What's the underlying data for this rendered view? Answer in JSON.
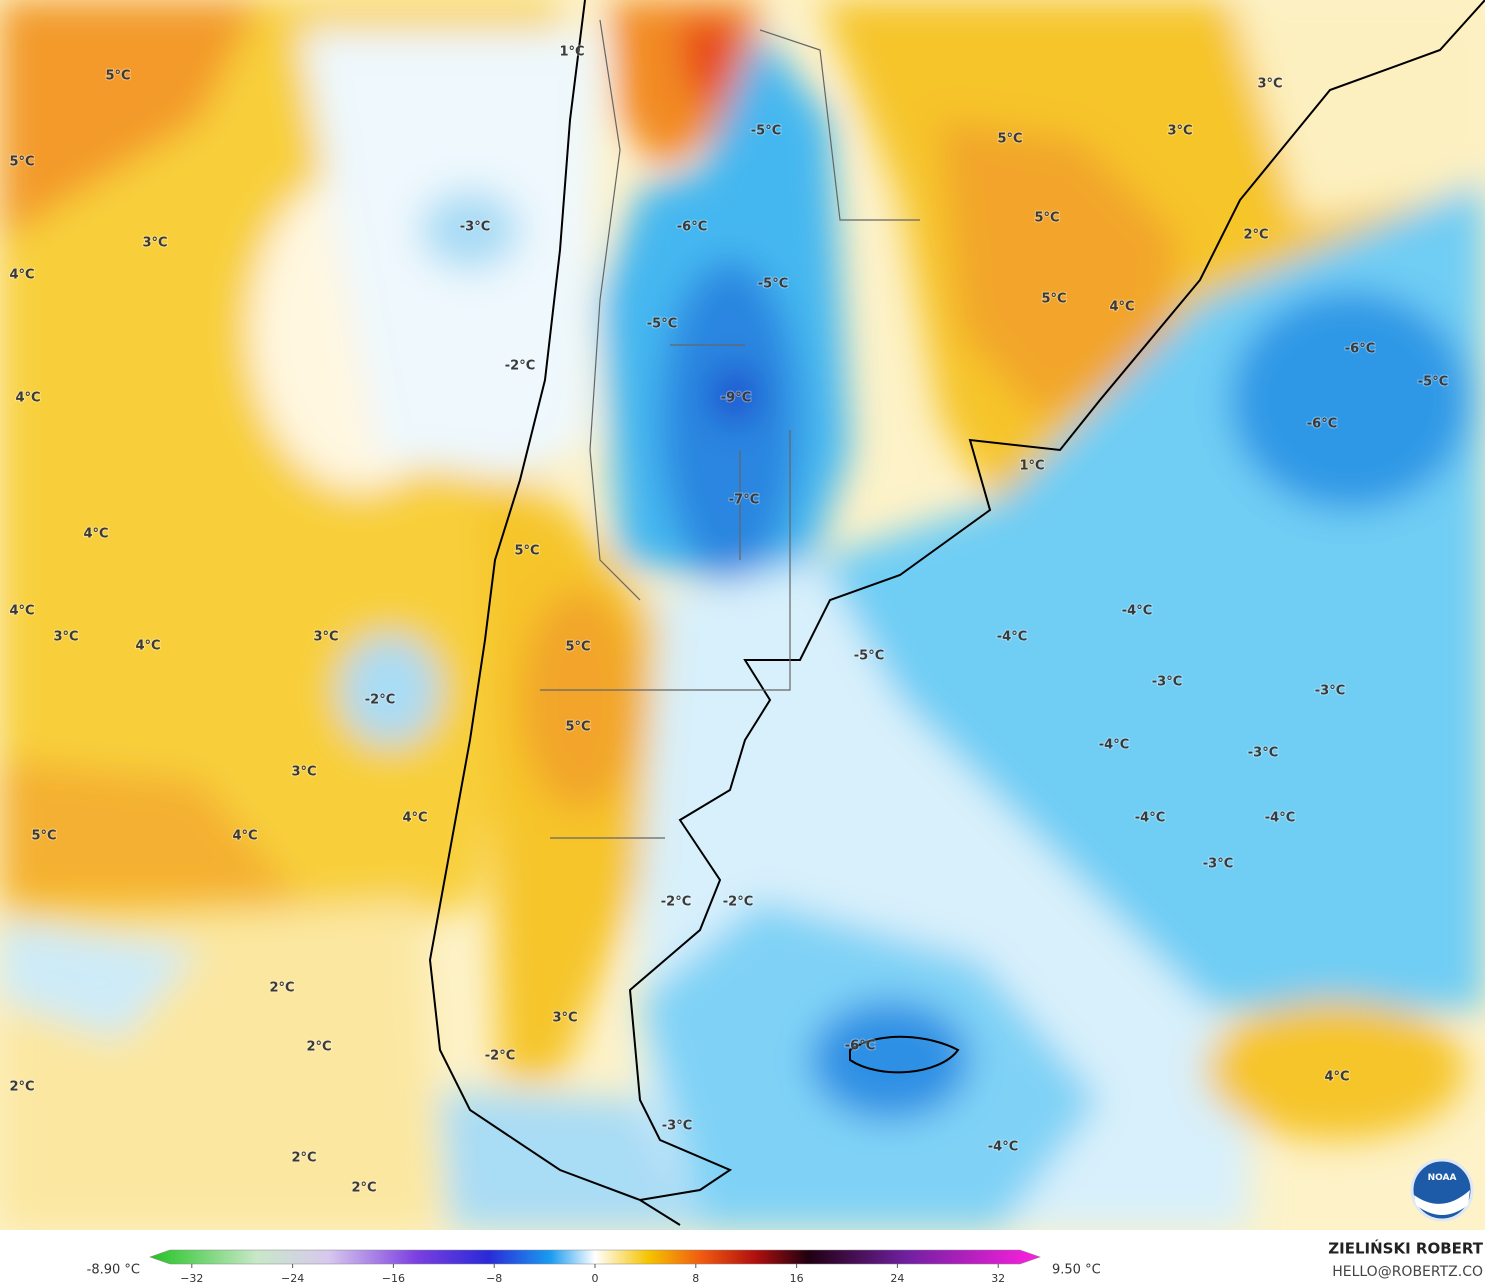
{
  "map": {
    "labels": [
      "1°C",
      "5°C",
      "5°C",
      "3°C",
      "4°C",
      "4°C",
      "4°C",
      "4°C",
      "3°C",
      "4°C",
      "3°C",
      "-2°C",
      "3°C",
      "4°C",
      "5°C",
      "4°C",
      "2°C",
      "2°C",
      "2°C",
      "2°C",
      "2°C",
      "-3°C",
      "-2°C",
      "-5°C",
      "-6°C",
      "-5°C",
      "-5°C",
      "-9°C",
      "-7°C",
      "5°C",
      "5°C",
      "5°C",
      "3°C",
      "-2°C",
      "-3°C",
      "-2°C",
      "-2°C",
      "-5°C",
      "-4°C",
      "-4°C",
      "-3°C",
      "-3°C",
      "-4°C",
      "-3°C",
      "-4°C",
      "-4°C",
      "-3°C",
      "-6°C",
      "-4°C",
      "4°C",
      "1°C",
      "5°C",
      "3°C",
      "3°C",
      "5°C",
      "2°C",
      "5°C",
      "4°C",
      "-6°C",
      "-5°C",
      "-6°C"
    ]
  },
  "colorbar": {
    "min_label": "-8.90 °C",
    "max_label": "9.50 °C",
    "ticks": [
      {
        "value": -32,
        "label": "−32"
      },
      {
        "value": -24,
        "label": "−24"
      },
      {
        "value": -16,
        "label": "−16"
      },
      {
        "value": -8,
        "label": "−8"
      },
      0,
      8,
      16,
      24,
      32
    ]
  },
  "credit": {
    "name": "ZIELIŃSKI ROBERT",
    "contact": "HELLO@ROBERTZ.CO"
  }
}
